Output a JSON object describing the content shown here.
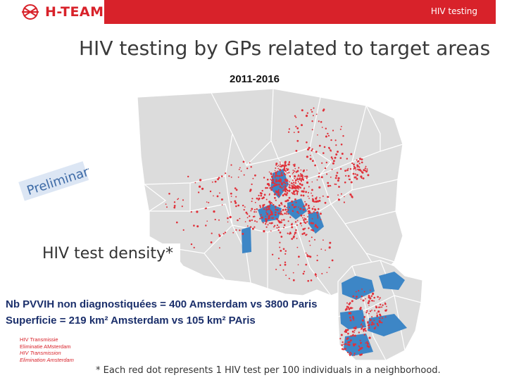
{
  "header": {
    "logo_text": "H-TEAM",
    "right_label": "HIV testing",
    "brand_color": "#d8222a"
  },
  "slide": {
    "title": "HIV testing by GPs related to target areas",
    "period": "2011-2016",
    "stamp": "Preliminary",
    "density_label": "HIV test density*",
    "note_line_1": "Nb PVVIH non diagnostiquées = 400 Amsterdam vs 3800 Paris",
    "note_line_2": "Superficie = 219 km² Amsterdam vs 105 km² PAris",
    "footer_logo_lines": [
      "HIV Transmissie",
      "Eliminatie AMsterdam",
      "HIV Transmission",
      "Elimination Amsterdam"
    ],
    "footnote": "* Each red dot represents 1 HIV test per 100 individuals in a neighborhood."
  },
  "map": {
    "district_color": "#dcdcdc",
    "target_area_color": "#3d86c6",
    "test_dot_color": "#e0313a"
  }
}
